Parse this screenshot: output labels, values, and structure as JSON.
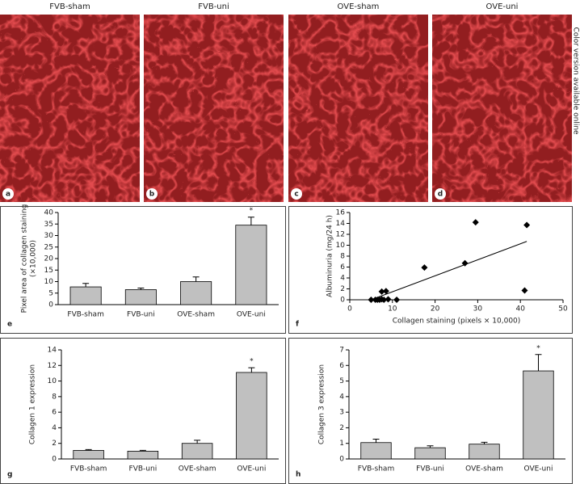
{
  "side_note": "Color version available online",
  "micrographs": [
    {
      "title": "FVB-sham",
      "panel": "a"
    },
    {
      "title": "FVB-uni",
      "panel": "b"
    },
    {
      "title": "OVE-sham",
      "panel": "c"
    },
    {
      "title": "OVE-uni",
      "panel": "d"
    }
  ],
  "chart_data": [
    {
      "type": "bar",
      "panel": "e",
      "ylabel": [
        "Pixel area of collagen staining",
        "(×10,000)"
      ],
      "categories": [
        "FVB-sham",
        "FVB-uni",
        "OVE-sham",
        "OVE-uni"
      ],
      "values": [
        7.7,
        6.5,
        10,
        34.5
      ],
      "errors": [
        1.5,
        0.7,
        2,
        3.5
      ],
      "color": "#c0c0c0",
      "ylim": [
        0,
        40
      ],
      "yticks": [
        0,
        5,
        10,
        15,
        20,
        25,
        30,
        35,
        40
      ],
      "annotations": [
        {
          "text": "*",
          "x": "OVE-uni"
        }
      ]
    },
    {
      "type": "scatter",
      "panel": "f",
      "xlabel": "Collagen staining (pixels × 10,000)",
      "ylabel": [
        "Albuminuria (mg/24 h)"
      ],
      "x": [
        29.5,
        41.5,
        17.5,
        27,
        41,
        7.5,
        8.5,
        5,
        6,
        6.5,
        7,
        8,
        9,
        11,
        7.5
      ],
      "y": [
        14.2,
        13.7,
        5.9,
        6.7,
        1.7,
        1.5,
        1.6,
        0,
        0,
        0,
        0,
        0,
        0.1,
        0,
        0.1
      ],
      "color": "#000000",
      "fit_line": {
        "x": [
          5,
          41.5
        ],
        "y": [
          0,
          10.7
        ]
      },
      "xlim": [
        0,
        50
      ],
      "xticks": [
        0,
        10,
        20,
        30,
        40,
        50
      ],
      "ylim": [
        0,
        16
      ],
      "yticks": [
        0,
        2,
        4,
        6,
        8,
        10,
        12,
        14,
        16
      ]
    },
    {
      "type": "bar",
      "panel": "g",
      "ylabel": [
        "Collagen 1 expression"
      ],
      "categories": [
        "FVB-sham",
        "FVB-uni",
        "OVE-sham",
        "OVE-uni"
      ],
      "values": [
        1.1,
        1.0,
        2.0,
        11.1
      ],
      "errors": [
        0.1,
        0.1,
        0.4,
        0.6
      ],
      "color": "#c0c0c0",
      "ylim": [
        0,
        14
      ],
      "yticks": [
        0,
        2,
        4,
        6,
        8,
        10,
        12,
        14
      ],
      "annotations": [
        {
          "text": "*",
          "x": "OVE-uni"
        }
      ]
    },
    {
      "type": "bar",
      "panel": "h",
      "ylabel": [
        "Collagen 3 expression"
      ],
      "categories": [
        "FVB-sham",
        "FVB-uni",
        "OVE-sham",
        "OVE-uni"
      ],
      "values": [
        1.05,
        0.72,
        0.95,
        5.65
      ],
      "errors": [
        0.22,
        0.12,
        0.12,
        1.05
      ],
      "color": "#c0c0c0",
      "ylim": [
        0,
        7
      ],
      "yticks": [
        0,
        1,
        2,
        3,
        4,
        5,
        6,
        7
      ],
      "annotations": [
        {
          "text": "*",
          "x": "OVE-uni"
        }
      ]
    }
  ]
}
